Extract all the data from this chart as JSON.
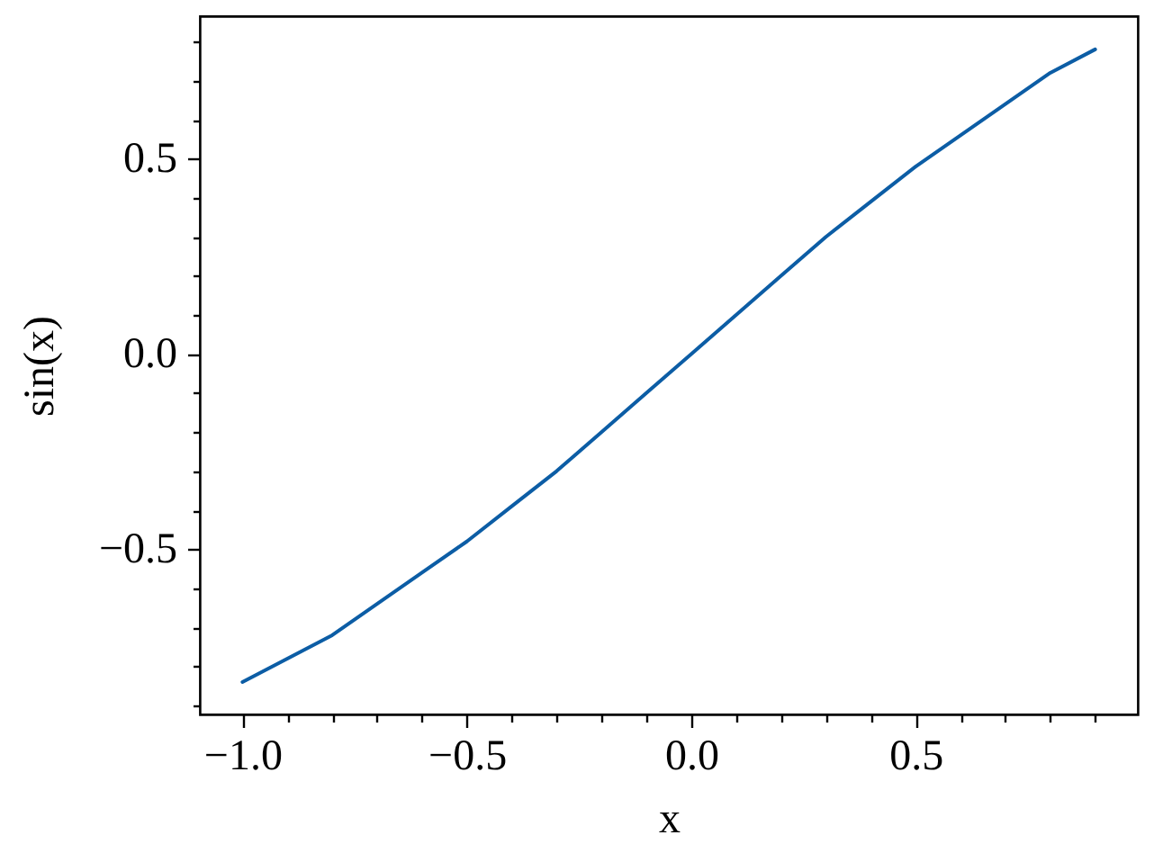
{
  "chart_data": {
    "type": "line",
    "xlabel": "x",
    "ylabel": "sin(x)",
    "x": [
      -1.0,
      -0.9,
      -0.8,
      -0.7,
      -0.6,
      -0.5,
      -0.4,
      -0.3,
      -0.2,
      -0.1,
      0.0,
      0.1,
      0.2,
      0.3,
      0.4,
      0.5,
      0.6,
      0.7,
      0.8,
      0.9
    ],
    "series": [
      {
        "color": "#0c5da5",
        "values": [
          -0.84,
          -0.78,
          -0.72,
          -0.64,
          -0.56,
          -0.48,
          -0.39,
          -0.3,
          -0.2,
          -0.1,
          0.0,
          0.1,
          0.2,
          0.3,
          0.39,
          0.48,
          0.56,
          0.64,
          0.72,
          0.78
        ]
      }
    ],
    "xlim": [
      -1.095,
      0.995
    ],
    "ylim": [
      -0.923,
      0.865
    ],
    "xticks": [
      {
        "value": -1.0,
        "label": "−1.0"
      },
      {
        "value": -0.9,
        "label": null
      },
      {
        "value": -0.8,
        "label": null
      },
      {
        "value": -0.7,
        "label": null
      },
      {
        "value": -0.6,
        "label": null
      },
      -0.5,
      {
        "value": -0.4,
        "label": null
      },
      {
        "value": -0.3,
        "label": null
      },
      {
        "value": -0.2,
        "label": null
      },
      {
        "value": -0.1,
        "label": null
      },
      {
        "value": 0.0,
        "label": "0.0"
      },
      {
        "value": 0.1,
        "label": null
      },
      {
        "value": 0.2,
        "label": null
      },
      {
        "value": 0.3,
        "label": null
      },
      {
        "value": 0.4,
        "label": null
      },
      0.5,
      {
        "value": 0.6,
        "label": null
      },
      {
        "value": 0.7,
        "label": null
      },
      {
        "value": 0.8,
        "label": null
      },
      {
        "value": 0.9,
        "label": null
      }
    ],
    "yticks": [
      {
        "value": -0.9,
        "label": null
      },
      {
        "value": -0.8,
        "label": null
      },
      {
        "value": -0.7,
        "label": null
      },
      {
        "value": -0.6,
        "label": null
      },
      -0.5,
      {
        "value": -0.4,
        "label": null
      },
      {
        "value": -0.3,
        "label": null
      },
      {
        "value": -0.2,
        "label": null
      },
      {
        "value": -0.1,
        "label": null
      },
      {
        "value": 0.0,
        "label": "0.0"
      },
      {
        "value": 0.1,
        "label": null
      },
      {
        "value": 0.2,
        "label": null
      },
      {
        "value": 0.3,
        "label": null
      },
      {
        "value": 0.4,
        "label": null
      },
      0.5,
      {
        "value": 0.6,
        "label": null
      },
      {
        "value": 0.7,
        "label": null
      },
      {
        "value": 0.8,
        "label": null
      }
    ],
    "line_style": "solid"
  }
}
